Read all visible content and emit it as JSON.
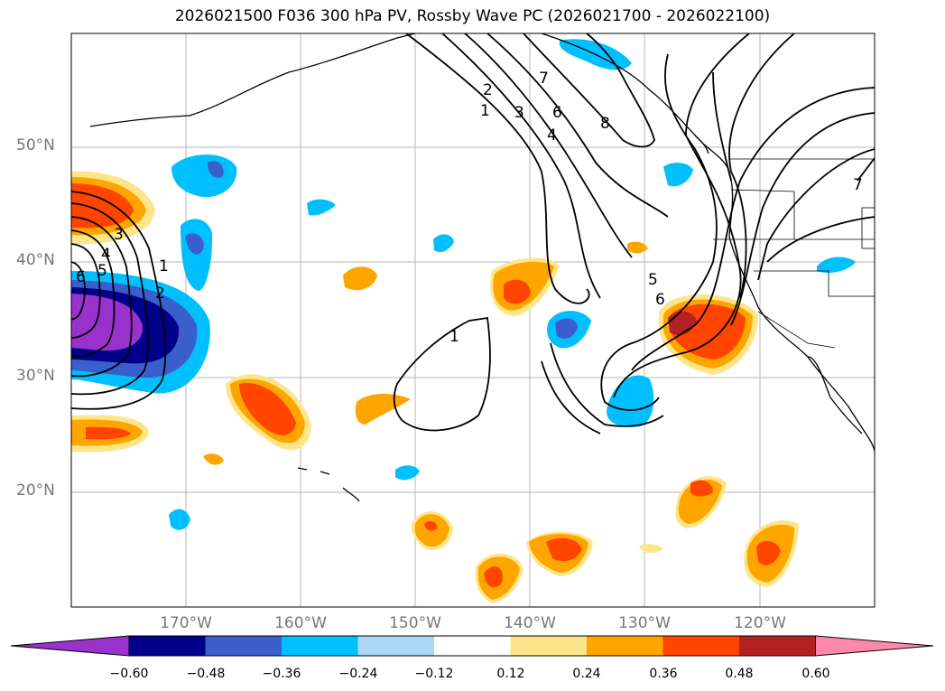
{
  "title": "2026021500 F036 300 hPa PV, Rossby Wave PC (2026021700 - 2026022100)",
  "lat_labels": [
    "50°N",
    "40°N",
    "30°N",
    "20°N"
  ],
  "lon_labels": [
    "170°W",
    "160°W",
    "150°W",
    "140°W",
    "130°W",
    "120°W"
  ],
  "colorbar": {
    "tick_labels": [
      "−0.60",
      "−0.48",
      "−0.36",
      "−0.24",
      "−0.12",
      "0.12",
      "0.24",
      "0.36",
      "0.48",
      "0.60"
    ],
    "colors": [
      "#9932cc",
      "#00008b",
      "#3a5fcd",
      "#00bfff",
      "#add8f5",
      "#ffffff",
      "#fde68a",
      "#ffa500",
      "#ff4500",
      "#b22222",
      "#ff88aa"
    ]
  },
  "contour_labels": [
    "1",
    "2",
    "3",
    "4",
    "5",
    "6",
    "7",
    "8"
  ]
}
